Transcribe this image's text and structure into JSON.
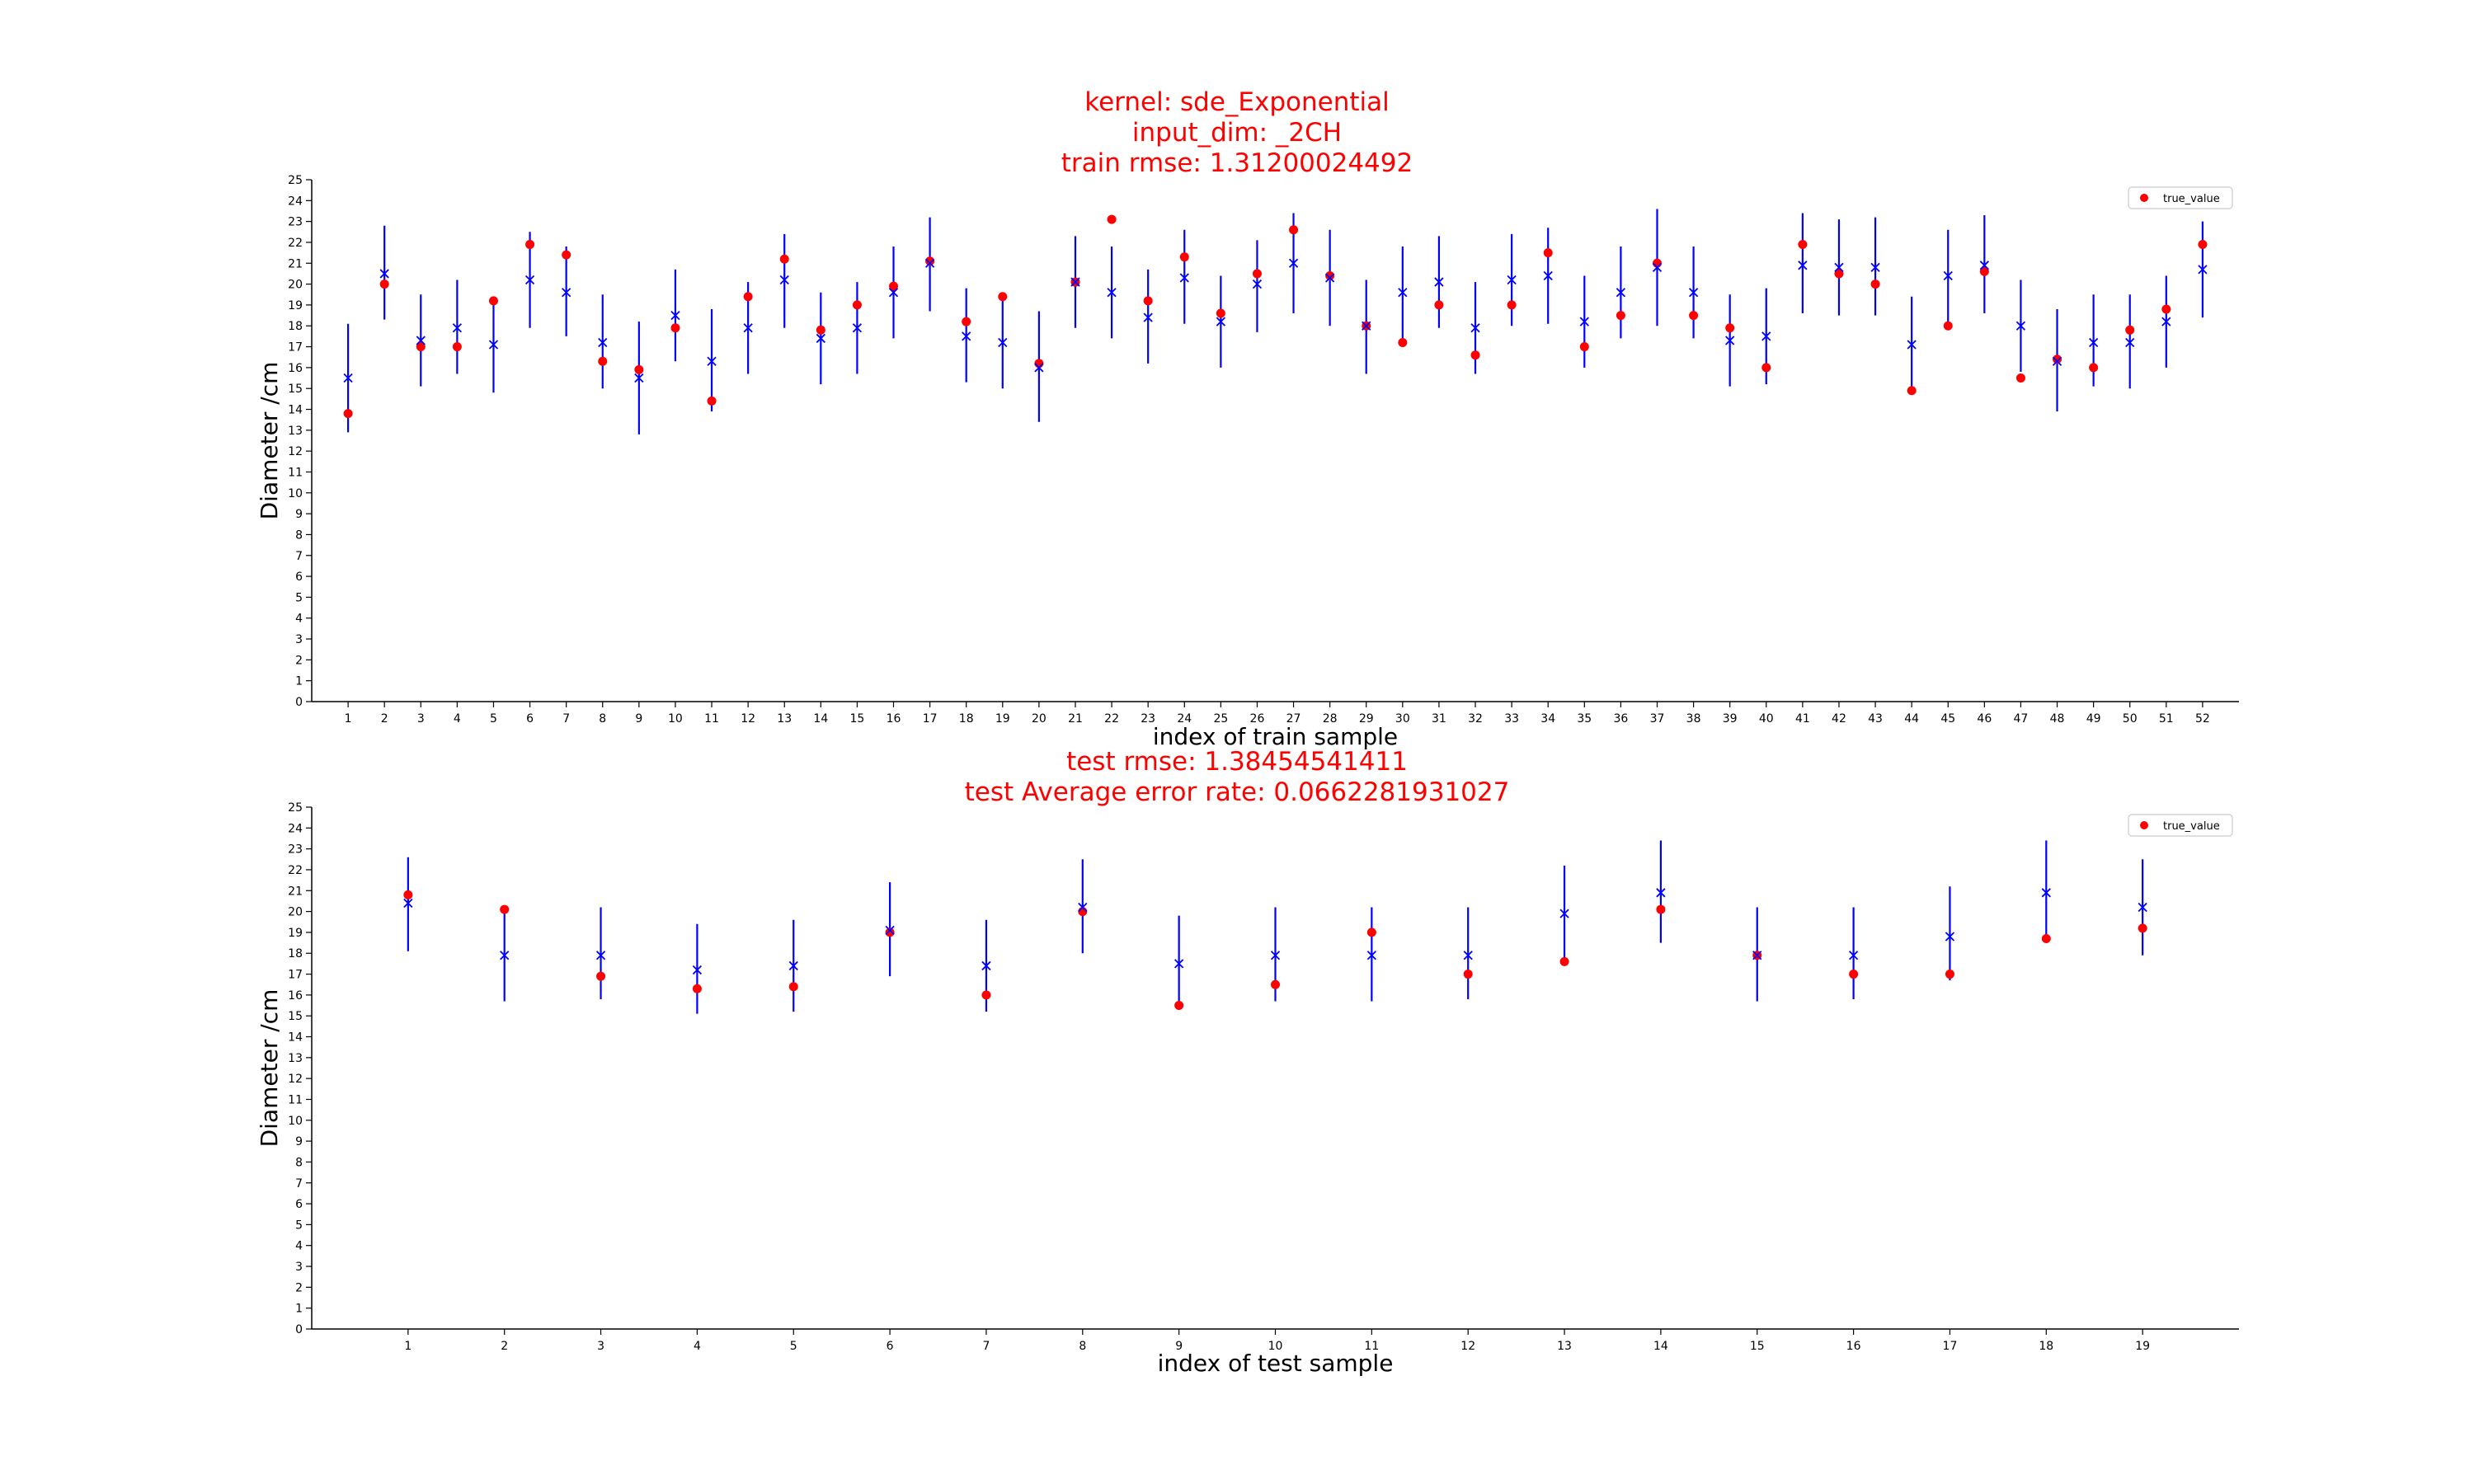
{
  "titles": {
    "top": [
      "kernel: sde_Exponential",
      "input_dim: _2CH",
      "train rmse: 1.31200024492"
    ],
    "bottom": [
      "test rmse: 1.38454541411",
      "test Average error rate: 0.0662281931027"
    ]
  },
  "colors": {
    "true_value": "#ff0000",
    "prediction": "#0000ff",
    "errorbar": "#0000ff",
    "title": "#ff0000"
  },
  "chart_data": [
    {
      "type": "scatter",
      "title": "",
      "xlabel": "index of train sample",
      "ylabel": "Diameter /cm",
      "ylim": [
        0,
        25
      ],
      "yticks": [
        0,
        1,
        2,
        3,
        4,
        5,
        6,
        7,
        8,
        9,
        10,
        11,
        12,
        13,
        14,
        15,
        16,
        17,
        18,
        19,
        20,
        21,
        22,
        23,
        24,
        25
      ],
      "xlim": [
        0,
        53
      ],
      "grid": false,
      "legend": {
        "position": "top-right",
        "entries": [
          "true_value"
        ]
      },
      "x": [
        1,
        2,
        3,
        4,
        5,
        6,
        7,
        8,
        9,
        10,
        11,
        12,
        13,
        14,
        15,
        16,
        17,
        18,
        19,
        20,
        21,
        22,
        23,
        24,
        25,
        26,
        27,
        28,
        29,
        30,
        31,
        32,
        33,
        34,
        35,
        36,
        37,
        38,
        39,
        40,
        41,
        42,
        43,
        44,
        45,
        46,
        47,
        48,
        49,
        50,
        51,
        52
      ],
      "true_value": [
        13.8,
        20.0,
        17.0,
        17.0,
        19.2,
        21.9,
        21.4,
        16.3,
        15.9,
        17.9,
        14.4,
        19.4,
        21.2,
        17.8,
        19.0,
        19.9,
        21.1,
        18.2,
        19.4,
        16.2,
        20.1,
        23.1,
        19.2,
        21.3,
        18.6,
        20.5,
        22.6,
        20.4,
        18.0,
        17.2,
        19.0,
        16.6,
        19.0,
        21.5,
        17.0,
        18.5,
        21.0,
        18.5,
        17.9,
        16.0,
        21.9,
        20.5,
        20.0,
        14.9,
        18.0,
        20.6,
        15.5,
        16.4,
        16.0,
        17.8,
        18.8,
        21.9
      ],
      "prediction": [
        15.5,
        20.5,
        17.3,
        17.9,
        17.1,
        20.2,
        19.6,
        17.2,
        15.5,
        18.5,
        16.3,
        17.9,
        20.2,
        17.4,
        17.9,
        19.6,
        21.0,
        17.5,
        17.2,
        16.0,
        20.1,
        19.6,
        18.4,
        20.3,
        18.2,
        20.0,
        21.0,
        20.3,
        18.0,
        19.6,
        20.1,
        17.9,
        20.2,
        20.4,
        18.2,
        19.6,
        20.8,
        19.6,
        17.3,
        17.5,
        20.9,
        20.8,
        20.8,
        17.1,
        20.4,
        20.9,
        18.0,
        16.3,
        17.2,
        17.2,
        18.2,
        20.7
      ],
      "error_low": [
        12.9,
        18.3,
        15.1,
        15.7,
        14.8,
        17.9,
        17.5,
        15.0,
        12.8,
        16.3,
        13.9,
        15.7,
        17.9,
        15.2,
        15.7,
        17.4,
        18.7,
        15.3,
        15.0,
        13.4,
        17.9,
        17.4,
        16.2,
        18.1,
        16.0,
        17.7,
        18.6,
        18.0,
        15.7,
        17.4,
        17.9,
        15.7,
        18.0,
        18.1,
        16.0,
        17.4,
        18.0,
        17.4,
        15.1,
        15.2,
        18.6,
        18.5,
        18.5,
        14.8,
        18.1,
        18.6,
        15.8,
        13.9,
        15.1,
        15.0,
        16.0,
        18.4
      ],
      "error_high": [
        18.1,
        22.8,
        19.5,
        20.2,
        19.3,
        22.5,
        21.8,
        19.5,
        18.2,
        20.7,
        18.8,
        20.1,
        22.4,
        19.6,
        20.1,
        21.8,
        23.2,
        19.8,
        19.4,
        18.7,
        22.3,
        21.8,
        20.7,
        22.6,
        20.4,
        22.1,
        23.4,
        22.6,
        20.2,
        21.8,
        22.3,
        20.1,
        22.4,
        22.7,
        20.4,
        21.8,
        23.6,
        21.8,
        19.5,
        19.8,
        23.4,
        23.1,
        23.2,
        19.4,
        22.6,
        23.3,
        20.2,
        18.8,
        19.5,
        19.5,
        20.4,
        23.0
      ]
    },
    {
      "type": "scatter",
      "title": "",
      "xlabel": "index of test sample",
      "ylabel": "Diameter /cm",
      "ylim": [
        0,
        25
      ],
      "yticks": [
        0,
        1,
        2,
        3,
        4,
        5,
        6,
        7,
        8,
        9,
        10,
        11,
        12,
        13,
        14,
        15,
        16,
        17,
        18,
        19,
        20,
        21,
        22,
        23,
        24,
        25
      ],
      "xlim": [
        0,
        20
      ],
      "grid": false,
      "legend": {
        "position": "top-right",
        "entries": [
          "true_value"
        ]
      },
      "x": [
        1,
        2,
        3,
        4,
        5,
        6,
        7,
        8,
        9,
        10,
        11,
        12,
        13,
        14,
        15,
        16,
        17,
        18,
        19
      ],
      "true_value": [
        20.8,
        20.1,
        16.9,
        16.3,
        16.4,
        19.0,
        16.0,
        20.0,
        15.5,
        16.5,
        19.0,
        17.0,
        17.6,
        20.1,
        17.9,
        17.0,
        17.0,
        18.7,
        19.2
      ],
      "prediction": [
        20.4,
        17.9,
        17.9,
        17.2,
        17.4,
        19.1,
        17.4,
        20.2,
        17.5,
        17.9,
        17.9,
        17.9,
        19.9,
        20.9,
        17.9,
        17.9,
        18.8,
        20.9,
        20.2
      ],
      "error_low": [
        18.1,
        15.7,
        15.8,
        15.1,
        15.2,
        16.9,
        15.2,
        18.0,
        15.3,
        15.7,
        15.7,
        15.8,
        17.6,
        18.5,
        15.7,
        15.8,
        16.7,
        18.6,
        17.9
      ],
      "error_high": [
        22.6,
        20.2,
        20.2,
        19.4,
        19.6,
        21.4,
        19.6,
        22.5,
        19.8,
        20.2,
        20.2,
        20.2,
        22.2,
        23.4,
        20.2,
        20.2,
        21.2,
        23.4,
        22.5
      ]
    }
  ]
}
